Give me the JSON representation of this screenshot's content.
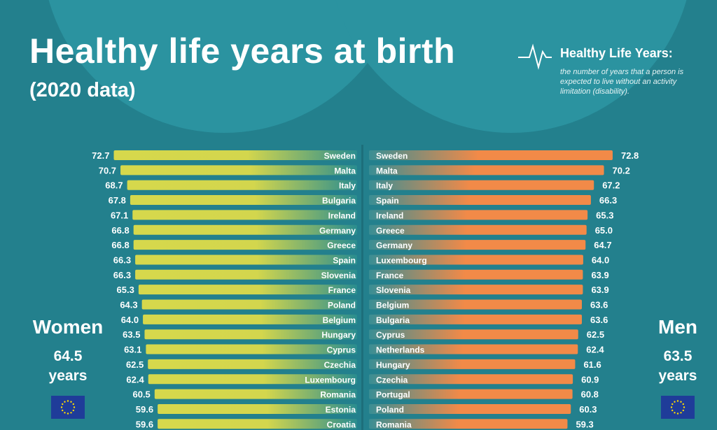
{
  "title": "Healthy life years at birth",
  "subtitle": "(2020 data)",
  "legend": {
    "icon": "heartbeat-line-icon",
    "title": "Healthy Life Years:",
    "text": "the number of years that a person is expected to live without an activity limitation (disability)."
  },
  "women": {
    "label": "Women",
    "value": "64.5",
    "unit": "years",
    "flag": "eu-flag-icon"
  },
  "men": {
    "label": "Men",
    "value": "63.5",
    "unit": "years",
    "flag": "eu-flag-icon"
  },
  "colors": {
    "background": "#23808d",
    "women_bar": "#d6d84c",
    "men_bar": "#f28a48"
  },
  "chart_data": [
    {
      "type": "bar",
      "orientation": "horizontal",
      "series": [
        {
          "name": "Women",
          "categories": [
            "Sweden",
            "Malta",
            "Italy",
            "Bulgaria",
            "Ireland",
            "Germany",
            "Greece",
            "Spain",
            "Slovenia",
            "France",
            "Poland",
            "Belgium",
            "Hungary",
            "Cyprus",
            "Czechia",
            "Luxembourg",
            "Romania",
            "Estonia",
            "Croatia"
          ],
          "values": [
            72.7,
            70.7,
            68.7,
            67.8,
            67.1,
            66.8,
            66.8,
            66.3,
            66.3,
            65.3,
            64.3,
            64.0,
            63.5,
            63.1,
            62.5,
            62.4,
            60.5,
            59.6,
            59.6
          ]
        }
      ]
    },
    {
      "type": "bar",
      "orientation": "horizontal",
      "series": [
        {
          "name": "Men",
          "categories": [
            "Sweden",
            "Malta",
            "Italy",
            "Spain",
            "Ireland",
            "Greece",
            "Germany",
            "Luxembourg",
            "France",
            "Slovenia",
            "Belgium",
            "Bulgaria",
            "Cyprus",
            "Netherlands",
            "Hungary",
            "Czechia",
            "Portugal",
            "Poland",
            "Romania"
          ],
          "values": [
            72.8,
            70.2,
            67.2,
            66.3,
            65.3,
            65.0,
            64.7,
            64.0,
            63.9,
            63.9,
            63.6,
            63.6,
            62.5,
            62.4,
            61.6,
            60.9,
            60.8,
            60.3,
            59.3
          ]
        }
      ]
    }
  ]
}
